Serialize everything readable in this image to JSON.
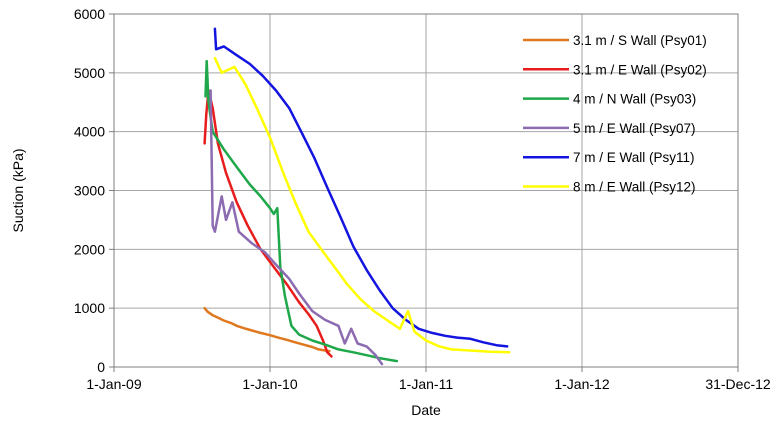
{
  "chart_data": {
    "type": "line",
    "title": "",
    "xlabel": "Date",
    "ylabel": "Suction (kPa)",
    "x_scale": "date",
    "xlim": [
      "2009-01-01",
      "2012-12-31"
    ],
    "ylim": [
      0,
      6000
    ],
    "x_ticks": [
      {
        "date": "2009-01-01",
        "label": "1-Jan-09"
      },
      {
        "date": "2010-01-01",
        "label": "1-Jan-10"
      },
      {
        "date": "2011-01-01",
        "label": "1-Jan-11"
      },
      {
        "date": "2012-01-01",
        "label": "1-Jan-12"
      },
      {
        "date": "2012-12-31",
        "label": "31-Dec-12"
      }
    ],
    "y_ticks": [
      0,
      1000,
      2000,
      3000,
      4000,
      5000,
      6000
    ],
    "grid": "major gridlines on both axes",
    "legend_position": "top-right",
    "series": [
      {
        "name": "3.1 m / S Wall (Psy01)",
        "color": "#E07820",
        "points": [
          [
            "2009-08-01",
            1000
          ],
          [
            "2009-08-08",
            940
          ],
          [
            "2009-08-20",
            880
          ],
          [
            "2009-09-01",
            840
          ],
          [
            "2009-09-15",
            790
          ],
          [
            "2009-10-01",
            750
          ],
          [
            "2009-10-15",
            700
          ],
          [
            "2009-11-01",
            660
          ],
          [
            "2009-11-20",
            620
          ],
          [
            "2009-12-10",
            580
          ],
          [
            "2010-01-01",
            540
          ],
          [
            "2010-01-20",
            500
          ],
          [
            "2010-02-10",
            460
          ],
          [
            "2010-03-01",
            420
          ],
          [
            "2010-03-20",
            380
          ],
          [
            "2010-04-10",
            340
          ],
          [
            "2010-04-25",
            300
          ],
          [
            "2010-05-10",
            280
          ],
          [
            "2010-05-20",
            270
          ]
        ]
      },
      {
        "name": "3.1 m / E Wall (Psy02)",
        "color": "#E81C1C",
        "points": [
          [
            "2009-08-01",
            3800
          ],
          [
            "2009-08-05",
            4300
          ],
          [
            "2009-08-10",
            4700
          ],
          [
            "2009-08-20",
            4400
          ],
          [
            "2009-09-01",
            3800
          ],
          [
            "2009-09-20",
            3300
          ],
          [
            "2009-10-15",
            2800
          ],
          [
            "2009-11-10",
            2400
          ],
          [
            "2009-12-10",
            2000
          ],
          [
            "2010-01-10",
            1700
          ],
          [
            "2010-02-10",
            1400
          ],
          [
            "2010-03-10",
            1100
          ],
          [
            "2010-04-01",
            900
          ],
          [
            "2010-04-20",
            700
          ],
          [
            "2010-05-05",
            450
          ],
          [
            "2010-05-15",
            250
          ],
          [
            "2010-05-25",
            180
          ]
        ]
      },
      {
        "name": "4 m / N Wall (Psy03)",
        "color": "#1EA84A",
        "points": [
          [
            "2009-08-03",
            4600
          ],
          [
            "2009-08-06",
            5200
          ],
          [
            "2009-08-10",
            4500
          ],
          [
            "2009-08-20",
            4000
          ],
          [
            "2009-09-15",
            3700
          ],
          [
            "2009-10-15",
            3400
          ],
          [
            "2009-11-15",
            3100
          ],
          [
            "2009-12-10",
            2900
          ],
          [
            "2010-01-01",
            2700
          ],
          [
            "2010-01-10",
            2600
          ],
          [
            "2010-01-18",
            2700
          ],
          [
            "2010-01-25",
            1700
          ],
          [
            "2010-02-05",
            1200
          ],
          [
            "2010-02-20",
            700
          ],
          [
            "2010-03-10",
            550
          ],
          [
            "2010-04-10",
            450
          ],
          [
            "2010-05-10",
            380
          ],
          [
            "2010-06-10",
            300
          ],
          [
            "2010-07-15",
            250
          ],
          [
            "2010-08-15",
            200
          ],
          [
            "2010-09-15",
            150
          ],
          [
            "2010-10-25",
            100
          ]
        ]
      },
      {
        "name": "5 m / E Wall (Psy07)",
        "color": "#8C6BB1",
        "points": [
          [
            "2009-08-15",
            4700
          ],
          [
            "2009-08-20",
            2400
          ],
          [
            "2009-08-25",
            2300
          ],
          [
            "2009-09-10",
            2900
          ],
          [
            "2009-09-20",
            2500
          ],
          [
            "2009-10-05",
            2800
          ],
          [
            "2009-10-20",
            2300
          ],
          [
            "2009-11-20",
            2100
          ],
          [
            "2009-12-20",
            1950
          ],
          [
            "2010-01-20",
            1700
          ],
          [
            "2010-02-15",
            1500
          ],
          [
            "2010-03-10",
            1250
          ],
          [
            "2010-04-10",
            950
          ],
          [
            "2010-05-10",
            800
          ],
          [
            "2010-06-10",
            700
          ],
          [
            "2010-06-25",
            400
          ],
          [
            "2010-07-10",
            650
          ],
          [
            "2010-07-25",
            400
          ],
          [
            "2010-08-15",
            350
          ],
          [
            "2010-09-05",
            200
          ],
          [
            "2010-09-20",
            50
          ]
        ]
      },
      {
        "name": "7 m / E Wall (Psy11)",
        "color": "#1414E0",
        "points": [
          [
            "2009-08-25",
            5750
          ],
          [
            "2009-08-28",
            5400
          ],
          [
            "2009-09-15",
            5450
          ],
          [
            "2009-10-15",
            5300
          ],
          [
            "2009-11-15",
            5150
          ],
          [
            "2009-12-15",
            4950
          ],
          [
            "2010-01-15",
            4700
          ],
          [
            "2010-02-15",
            4400
          ],
          [
            "2010-03-15",
            4000
          ],
          [
            "2010-04-15",
            3550
          ],
          [
            "2010-05-15",
            3050
          ],
          [
            "2010-06-15",
            2550
          ],
          [
            "2010-07-15",
            2050
          ],
          [
            "2010-08-15",
            1650
          ],
          [
            "2010-09-15",
            1300
          ],
          [
            "2010-10-15",
            1000
          ],
          [
            "2010-11-15",
            800
          ],
          [
            "2010-12-15",
            650
          ],
          [
            "2011-01-15",
            580
          ],
          [
            "2011-02-15",
            530
          ],
          [
            "2011-03-15",
            500
          ],
          [
            "2011-04-15",
            480
          ],
          [
            "2011-05-15",
            420
          ],
          [
            "2011-06-15",
            370
          ],
          [
            "2011-07-10",
            350
          ]
        ]
      },
      {
        "name": "8 m / E Wall (Psy12)",
        "color": "#FFFF00",
        "points": [
          [
            "2009-08-25",
            5250
          ],
          [
            "2009-09-10",
            5000
          ],
          [
            "2009-10-10",
            5100
          ],
          [
            "2009-11-05",
            4800
          ],
          [
            "2009-12-01",
            4400
          ],
          [
            "2010-01-01",
            3900
          ],
          [
            "2010-02-01",
            3300
          ],
          [
            "2010-03-01",
            2800
          ],
          [
            "2010-04-01",
            2300
          ],
          [
            "2010-05-01",
            2000
          ],
          [
            "2010-06-01",
            1700
          ],
          [
            "2010-07-01",
            1400
          ],
          [
            "2010-08-01",
            1150
          ],
          [
            "2010-09-01",
            950
          ],
          [
            "2010-10-01",
            800
          ],
          [
            "2010-11-01",
            650
          ],
          [
            "2010-11-20",
            950
          ],
          [
            "2010-12-05",
            600
          ],
          [
            "2011-01-01",
            450
          ],
          [
            "2011-02-01",
            350
          ],
          [
            "2011-03-01",
            300
          ],
          [
            "2011-04-15",
            280
          ],
          [
            "2011-06-01",
            260
          ],
          [
            "2011-07-15",
            250
          ]
        ]
      }
    ]
  }
}
